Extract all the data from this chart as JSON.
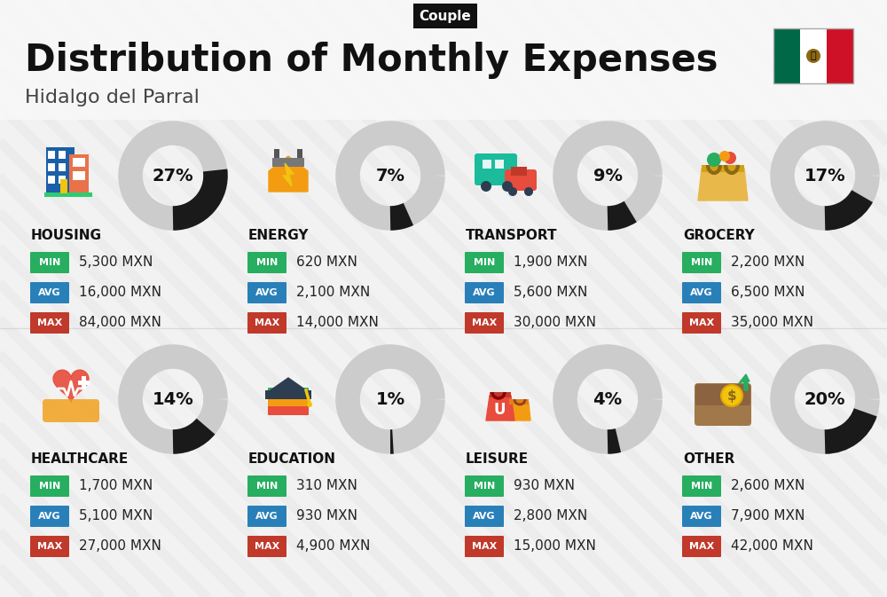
{
  "title": "Distribution of Monthly Expenses",
  "subtitle": "Hidalgo del Parral",
  "badge": "Couple",
  "background_color": "#f2f2f2",
  "categories": [
    {
      "name": "HOUSING",
      "percent": 27,
      "min": "5,300 MXN",
      "avg": "16,000 MXN",
      "max": "84,000 MXN",
      "row": 0,
      "col": 0
    },
    {
      "name": "ENERGY",
      "percent": 7,
      "min": "620 MXN",
      "avg": "2,100 MXN",
      "max": "14,000 MXN",
      "row": 0,
      "col": 1
    },
    {
      "name": "TRANSPORT",
      "percent": 9,
      "min": "1,900 MXN",
      "avg": "5,600 MXN",
      "max": "30,000 MXN",
      "row": 0,
      "col": 2
    },
    {
      "name": "GROCERY",
      "percent": 17,
      "min": "2,200 MXN",
      "avg": "6,500 MXN",
      "max": "35,000 MXN",
      "row": 0,
      "col": 3
    },
    {
      "name": "HEALTHCARE",
      "percent": 14,
      "min": "1,700 MXN",
      "avg": "5,100 MXN",
      "max": "27,000 MXN",
      "row": 1,
      "col": 0
    },
    {
      "name": "EDUCATION",
      "percent": 1,
      "min": "310 MXN",
      "avg": "930 MXN",
      "max": "4,900 MXN",
      "row": 1,
      "col": 1
    },
    {
      "name": "LEISURE",
      "percent": 4,
      "min": "930 MXN",
      "avg": "2,800 MXN",
      "max": "15,000 MXN",
      "row": 1,
      "col": 2
    },
    {
      "name": "OTHER",
      "percent": 20,
      "min": "2,600 MXN",
      "avg": "7,900 MXN",
      "max": "42,000 MXN",
      "row": 1,
      "col": 3
    }
  ],
  "min_color": "#27ae60",
  "avg_color": "#2980b9",
  "max_color": "#c0392b",
  "label_color": "#ffffff",
  "cat_name_color": "#111111",
  "value_color": "#222222",
  "percent_color": "#111111",
  "donut_bg": "#cccccc",
  "donut_fg": "#1a1a1a",
  "title_color": "#111111",
  "subtitle_color": "#444444",
  "badge_bg": "#111111",
  "badge_text": "#ffffff",
  "stripe_color": "#e8e8e8",
  "flag_green": "#006847",
  "flag_white": "#ffffff",
  "flag_red": "#ce1126"
}
